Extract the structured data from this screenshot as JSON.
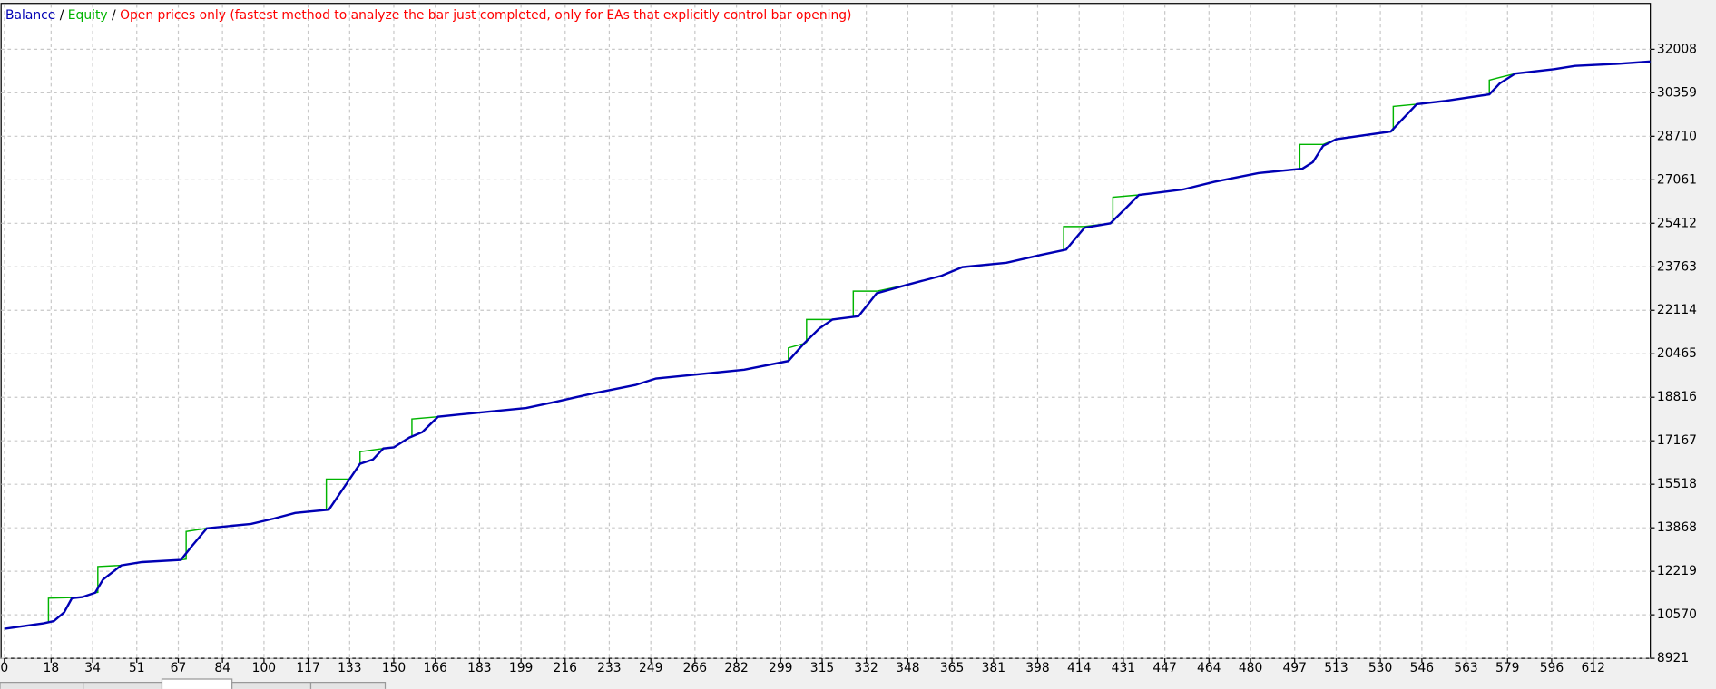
{
  "chart_data": {
    "type": "line",
    "separator": "/",
    "mode": "Open prices only (fastest method to analyze the bar just completed, only for EAs that explicitly control bar opening)",
    "mode_color": "#ff0000",
    "xlim": [
      0,
      634
    ],
    "ylim": [
      8921,
      33707
    ],
    "grid": true,
    "xticks": [
      0,
      18,
      34,
      51,
      67,
      84,
      100,
      117,
      133,
      150,
      166,
      183,
      199,
      216,
      233,
      249,
      266,
      282,
      299,
      315,
      332,
      348,
      365,
      381,
      398,
      414,
      431,
      447,
      464,
      480,
      497,
      513,
      530,
      546,
      563,
      579,
      596,
      612
    ],
    "yticks": [
      8921,
      10570,
      12219,
      13868,
      15518,
      17167,
      18816,
      20465,
      22114,
      23763,
      25412,
      27061,
      28710,
      30359,
      32008
    ],
    "series": [
      {
        "name": "Equity",
        "color": "#00b400",
        "x": [
          0,
          15,
          17,
          17,
          26,
          30,
          35,
          36,
          36,
          45,
          53,
          68,
          70,
          70,
          78,
          95,
          104,
          112,
          124,
          124,
          133,
          137,
          137,
          146,
          150,
          156,
          157,
          157,
          167,
          175,
          201,
          213,
          226,
          243,
          251,
          285,
          302,
          302,
          308,
          309,
          309,
          319,
          327,
          327,
          336,
          348,
          361,
          369,
          386,
          399,
          408,
          408,
          416,
          426,
          427,
          427,
          437,
          454,
          466,
          483,
          499,
          499,
          508,
          513,
          534,
          535,
          535,
          544,
          555,
          572,
          572,
          582,
          597,
          605,
          622,
          634
        ],
        "values": [
          10040,
          10247,
          10280,
          11200,
          11220,
          11241,
          11407,
          11420,
          12400,
          12443,
          12567,
          12650,
          12680,
          13730,
          13851,
          14017,
          14224,
          14431,
          14540,
          15716,
          15716,
          16296,
          16750,
          16876,
          16917,
          17290,
          17320,
          17994,
          18077,
          18160,
          18408,
          18657,
          18947,
          19279,
          19527,
          19859,
          20190,
          20690,
          20853,
          20900,
          21764,
          21764,
          21860,
          22840,
          22840,
          23090,
          23422,
          23753,
          23919,
          24209,
          24400,
          25290,
          25290,
          25410,
          25450,
          26400,
          26487,
          26694,
          26984,
          27316,
          27470,
          28400,
          28400,
          28600,
          28890,
          28920,
          29840,
          29926,
          30050,
          30299,
          30840,
          31086,
          31252,
          31376,
          31459,
          31542
        ]
      },
      {
        "name": "Balance",
        "color": "#0000b4",
        "x": [
          0,
          15,
          19,
          23,
          26,
          30,
          35,
          38,
          45,
          53,
          68,
          72,
          78,
          95,
          104,
          112,
          125,
          129,
          133,
          137,
          142,
          146,
          150,
          156,
          161,
          167,
          175,
          201,
          213,
          226,
          243,
          251,
          285,
          302,
          308,
          314,
          319,
          329,
          336,
          348,
          361,
          369,
          386,
          399,
          409,
          416,
          426,
          432,
          437,
          454,
          466,
          483,
          500,
          504,
          508,
          513,
          534,
          538,
          544,
          555,
          572,
          576,
          582,
          597,
          605,
          622,
          634
        ],
        "values": [
          10040,
          10247,
          10330,
          10661,
          11200,
          11241,
          11407,
          11904,
          12443,
          12567,
          12650,
          13147,
          13851,
          14017,
          14224,
          14431,
          14555,
          15136,
          15716,
          16296,
          16461,
          16876,
          16917,
          17290,
          17497,
          18077,
          18160,
          18408,
          18657,
          18947,
          19279,
          19527,
          19859,
          20190,
          20853,
          21433,
          21764,
          21889,
          22759,
          23090,
          23422,
          23753,
          23919,
          24209,
          24416,
          25244,
          25410,
          25990,
          26487,
          26694,
          26984,
          27316,
          27482,
          27730,
          28352,
          28600,
          28890,
          29305,
          29926,
          30050,
          30299,
          30713,
          31086,
          31252,
          31376,
          31459,
          31542
        ]
      }
    ]
  }
}
